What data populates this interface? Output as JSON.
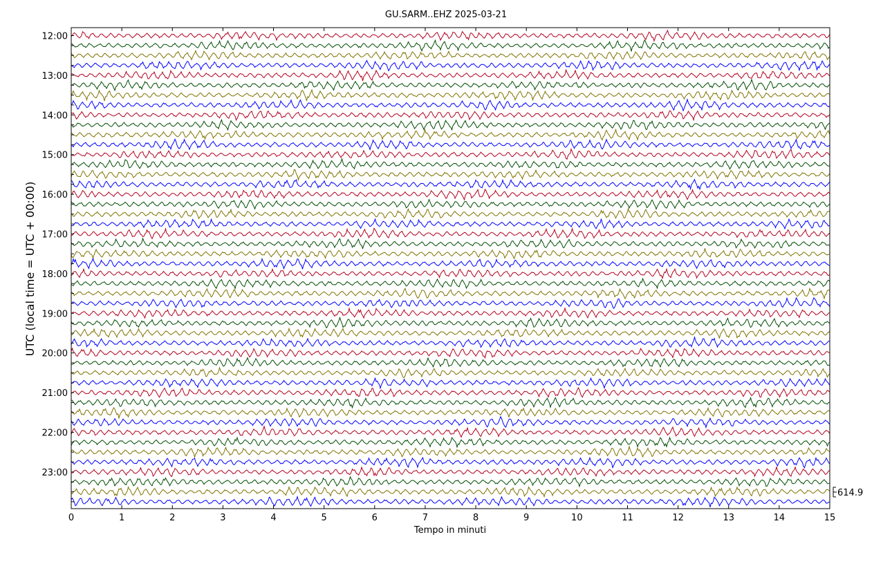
{
  "chart_data": {
    "type": "line",
    "title": "GU.SARM..EHZ 2025-03-21",
    "xlabel": "Tempo in minuti",
    "ylabel": "UTC (local time = UTC + 00:00)",
    "xlim": [
      0,
      15
    ],
    "x_ticks": [
      "0",
      "1",
      "2",
      "3",
      "4",
      "5",
      "6",
      "7",
      "8",
      "9",
      "10",
      "11",
      "12",
      "13",
      "14",
      "15"
    ],
    "y_tick_labels": [
      "12:00",
      "13:00",
      "14:00",
      "15:00",
      "16:00",
      "17:00",
      "18:00",
      "19:00",
      "20:00",
      "21:00",
      "22:00",
      "23:00"
    ],
    "traces_per_hour": 4,
    "trace_start_times": [
      "12:00",
      "12:15",
      "12:30",
      "12:45",
      "13:00",
      "13:15",
      "13:30",
      "13:45",
      "14:00",
      "14:15",
      "14:30",
      "14:45",
      "15:00",
      "15:15",
      "15:30",
      "15:45",
      "16:00",
      "16:15",
      "16:30",
      "16:45",
      "17:00",
      "17:15",
      "17:30",
      "17:45",
      "18:00",
      "18:15",
      "18:30",
      "18:45",
      "19:00",
      "19:15",
      "19:30",
      "19:45",
      "20:00",
      "20:15",
      "20:30",
      "20:45",
      "21:00",
      "21:15",
      "21:30",
      "21:45",
      "22:00",
      "22:15",
      "22:30",
      "22:45",
      "23:00",
      "23:15",
      "23:30",
      "23:45"
    ],
    "trace_colors": [
      "#b2001e",
      "#004c00",
      "#7f7200",
      "#0000ff"
    ],
    "scale_label": "614.9",
    "grid": false
  }
}
